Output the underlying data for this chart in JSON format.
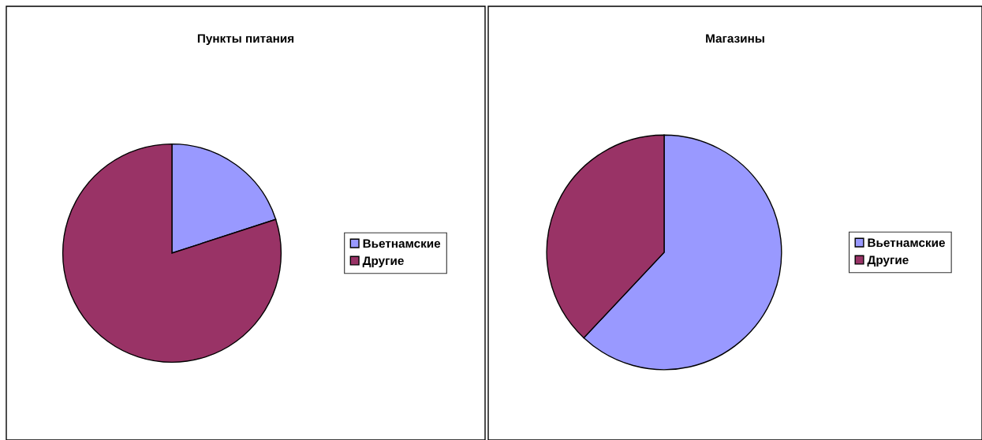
{
  "chart_data": [
    {
      "type": "pie",
      "title": "Пункты питания",
      "categories": [
        "Вьетнамские",
        "Другие"
      ],
      "values": [
        20,
        80
      ],
      "colors": [
        "#9999ff",
        "#993366"
      ],
      "legend": "right"
    },
    {
      "type": "pie",
      "title": "Магазины",
      "categories": [
        "Вьетнамские",
        "Другие"
      ],
      "values": [
        62,
        38
      ],
      "colors": [
        "#9999ff",
        "#993366"
      ],
      "legend": "right"
    }
  ]
}
